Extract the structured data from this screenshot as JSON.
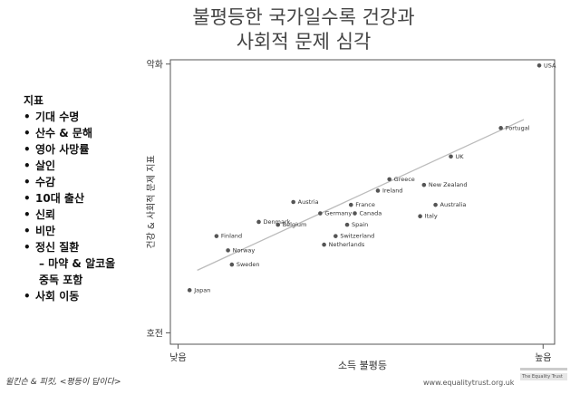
{
  "title": {
    "line1": "불평등한 국가일수록 건강과",
    "line2": "사회적 문제 심각"
  },
  "indicators": {
    "title": "지표",
    "items": [
      {
        "text": "기대 수명",
        "bullet": true
      },
      {
        "text": "산수 & 문해",
        "bullet": true
      },
      {
        "text": "영아 사망률",
        "bullet": true
      },
      {
        "text": "살인",
        "bullet": true
      },
      {
        "text": "수감",
        "bullet": true
      },
      {
        "text": "10대 출산",
        "bullet": true
      },
      {
        "text": "신뢰",
        "bullet": true
      },
      {
        "text": "비만",
        "bullet": true
      },
      {
        "text": "정신 질환",
        "bullet": true
      },
      {
        "text": "– 마약 & 알코올",
        "bullet": false
      },
      {
        "text": "중독 포함",
        "bullet": false
      },
      {
        "text": "사회 이동",
        "bullet": true
      }
    ]
  },
  "footer": {
    "citation": "윌킨슨 & 피킷, <평등이 답이다>",
    "url": "www.equalitytrust.org.uk",
    "logo_text": "The Equality Trust"
  },
  "colors": {
    "axis": "#555555",
    "point": "#555555",
    "trend": "#bbbbbb",
    "text": "#333333"
  },
  "chart_data": {
    "type": "scatter",
    "title": "",
    "xlabel": "소득 불평등",
    "ylabel": "건강 & 사회적 문제 지표",
    "xlim": [
      0,
      10
    ],
    "ylim": [
      0,
      10
    ],
    "x_ticks": [
      {
        "value": 0.2,
        "label": "낮음"
      },
      {
        "value": 9.7,
        "label": "높음"
      }
    ],
    "y_ticks": [
      {
        "value": 9.85,
        "label": "악화"
      },
      {
        "value": 0.4,
        "label": "호전"
      }
    ],
    "grid": false,
    "points": [
      {
        "label": "USA",
        "x": 9.6,
        "y": 9.8
      },
      {
        "label": "Portugal",
        "x": 8.6,
        "y": 7.6
      },
      {
        "label": "UK",
        "x": 7.3,
        "y": 6.6
      },
      {
        "label": "New Zealand",
        "x": 6.6,
        "y": 5.6
      },
      {
        "label": "Greece",
        "x": 5.7,
        "y": 5.8
      },
      {
        "label": "Ireland",
        "x": 5.4,
        "y": 5.4
      },
      {
        "label": "Australia",
        "x": 6.9,
        "y": 4.9
      },
      {
        "label": "Italy",
        "x": 6.5,
        "y": 4.5
      },
      {
        "label": "France",
        "x": 4.7,
        "y": 4.9
      },
      {
        "label": "Canada",
        "x": 4.8,
        "y": 4.6
      },
      {
        "label": "Austria",
        "x": 3.2,
        "y": 5.0
      },
      {
        "label": "Germany",
        "x": 3.9,
        "y": 4.6
      },
      {
        "label": "Spain",
        "x": 4.6,
        "y": 4.2
      },
      {
        "label": "Switzerland",
        "x": 4.3,
        "y": 3.8
      },
      {
        "label": "Denmark",
        "x": 2.3,
        "y": 4.3
      },
      {
        "label": "Belgium",
        "x": 2.8,
        "y": 4.2
      },
      {
        "label": "Finland",
        "x": 1.2,
        "y": 3.8
      },
      {
        "label": "Netherlands",
        "x": 4.0,
        "y": 3.5
      },
      {
        "label": "Norway",
        "x": 1.5,
        "y": 3.3
      },
      {
        "label": "Sweden",
        "x": 1.6,
        "y": 2.8
      },
      {
        "label": "Japan",
        "x": 0.5,
        "y": 1.9
      }
    ],
    "trendline": {
      "x": [
        0.7,
        9.2
      ],
      "y": [
        2.6,
        7.9
      ]
    }
  }
}
